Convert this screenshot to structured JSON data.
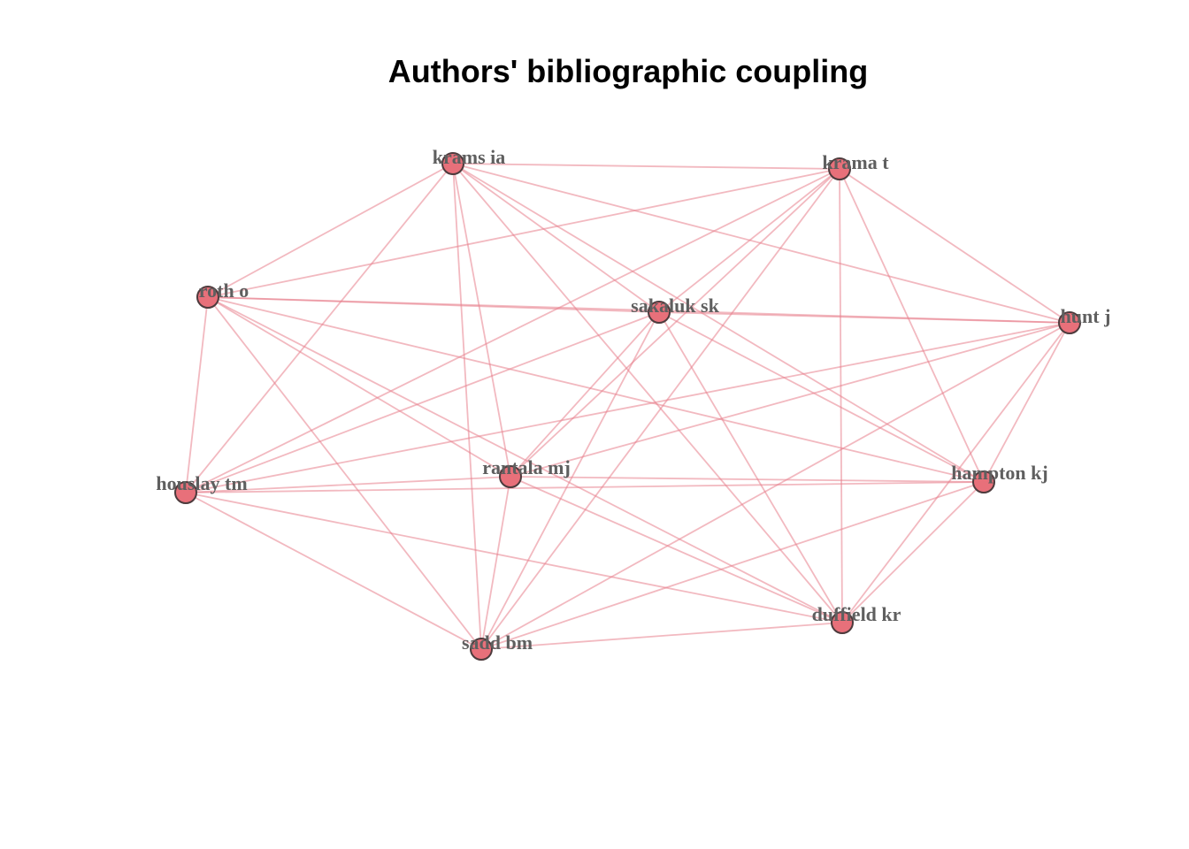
{
  "title": "Authors' bibliographic coupling",
  "colors": {
    "edge": "#e8808c",
    "node_fill": "#e8707a",
    "node_stroke": "#4d3b3d",
    "label": "#5f5f5f"
  },
  "nodes": [
    {
      "id": "krams_ia",
      "label": "krams ia"
    },
    {
      "id": "krama_t",
      "label": "krama t"
    },
    {
      "id": "roth_o",
      "label": "roth o"
    },
    {
      "id": "sakaluk_sk",
      "label": "sakaluk sk"
    },
    {
      "id": "hunt_j",
      "label": "hunt j"
    },
    {
      "id": "rantala_mj",
      "label": "rantala mj"
    },
    {
      "id": "houslay_tm",
      "label": "houslay tm"
    },
    {
      "id": "hampton_kj",
      "label": "hampton kj"
    },
    {
      "id": "duffield_kr",
      "label": "duffield kr"
    },
    {
      "id": "sadd_bm",
      "label": "sadd bm"
    }
  ],
  "edges": [
    [
      "krams_ia",
      "krama_t"
    ],
    [
      "krams_ia",
      "roth_o"
    ],
    [
      "krams_ia",
      "houslay_tm"
    ],
    [
      "krams_ia",
      "rantala_mj"
    ],
    [
      "krams_ia",
      "sadd_bm"
    ],
    [
      "krams_ia",
      "sakaluk_sk"
    ],
    [
      "krams_ia",
      "hunt_j"
    ],
    [
      "krams_ia",
      "hampton_kj"
    ],
    [
      "krams_ia",
      "duffield_kr"
    ],
    [
      "krama_t",
      "roth_o"
    ],
    [
      "krama_t",
      "houslay_tm"
    ],
    [
      "krama_t",
      "rantala_mj"
    ],
    [
      "krama_t",
      "sadd_bm"
    ],
    [
      "krama_t",
      "sakaluk_sk"
    ],
    [
      "krama_t",
      "hunt_j"
    ],
    [
      "krama_t",
      "hampton_kj"
    ],
    [
      "krama_t",
      "duffield_kr"
    ],
    [
      "roth_o",
      "sakaluk_sk"
    ],
    [
      "roth_o",
      "hunt_j"
    ],
    [
      "roth_o",
      "houslay_tm"
    ],
    [
      "roth_o",
      "rantala_mj"
    ],
    [
      "roth_o",
      "sadd_bm"
    ],
    [
      "roth_o",
      "hampton_kj"
    ],
    [
      "roth_o",
      "duffield_kr"
    ],
    [
      "sakaluk_sk",
      "hunt_j"
    ],
    [
      "sakaluk_sk",
      "houslay_tm"
    ],
    [
      "sakaluk_sk",
      "rantala_mj"
    ],
    [
      "sakaluk_sk",
      "sadd_bm"
    ],
    [
      "sakaluk_sk",
      "hampton_kj"
    ],
    [
      "sakaluk_sk",
      "duffield_kr"
    ],
    [
      "hunt_j",
      "houslay_tm"
    ],
    [
      "hunt_j",
      "rantala_mj"
    ],
    [
      "hunt_j",
      "sadd_bm"
    ],
    [
      "hunt_j",
      "hampton_kj"
    ],
    [
      "hunt_j",
      "duffield_kr"
    ],
    [
      "houslay_tm",
      "rantala_mj"
    ],
    [
      "houslay_tm",
      "hampton_kj"
    ],
    [
      "houslay_tm",
      "duffield_kr"
    ],
    [
      "houslay_tm",
      "sadd_bm"
    ],
    [
      "rantala_mj",
      "hampton_kj"
    ],
    [
      "rantala_mj",
      "duffield_kr"
    ],
    [
      "rantala_mj",
      "sadd_bm"
    ],
    [
      "hampton_kj",
      "sadd_bm"
    ],
    [
      "hampton_kj",
      "duffield_kr"
    ],
    [
      "duffield_kr",
      "sadd_bm"
    ]
  ]
}
